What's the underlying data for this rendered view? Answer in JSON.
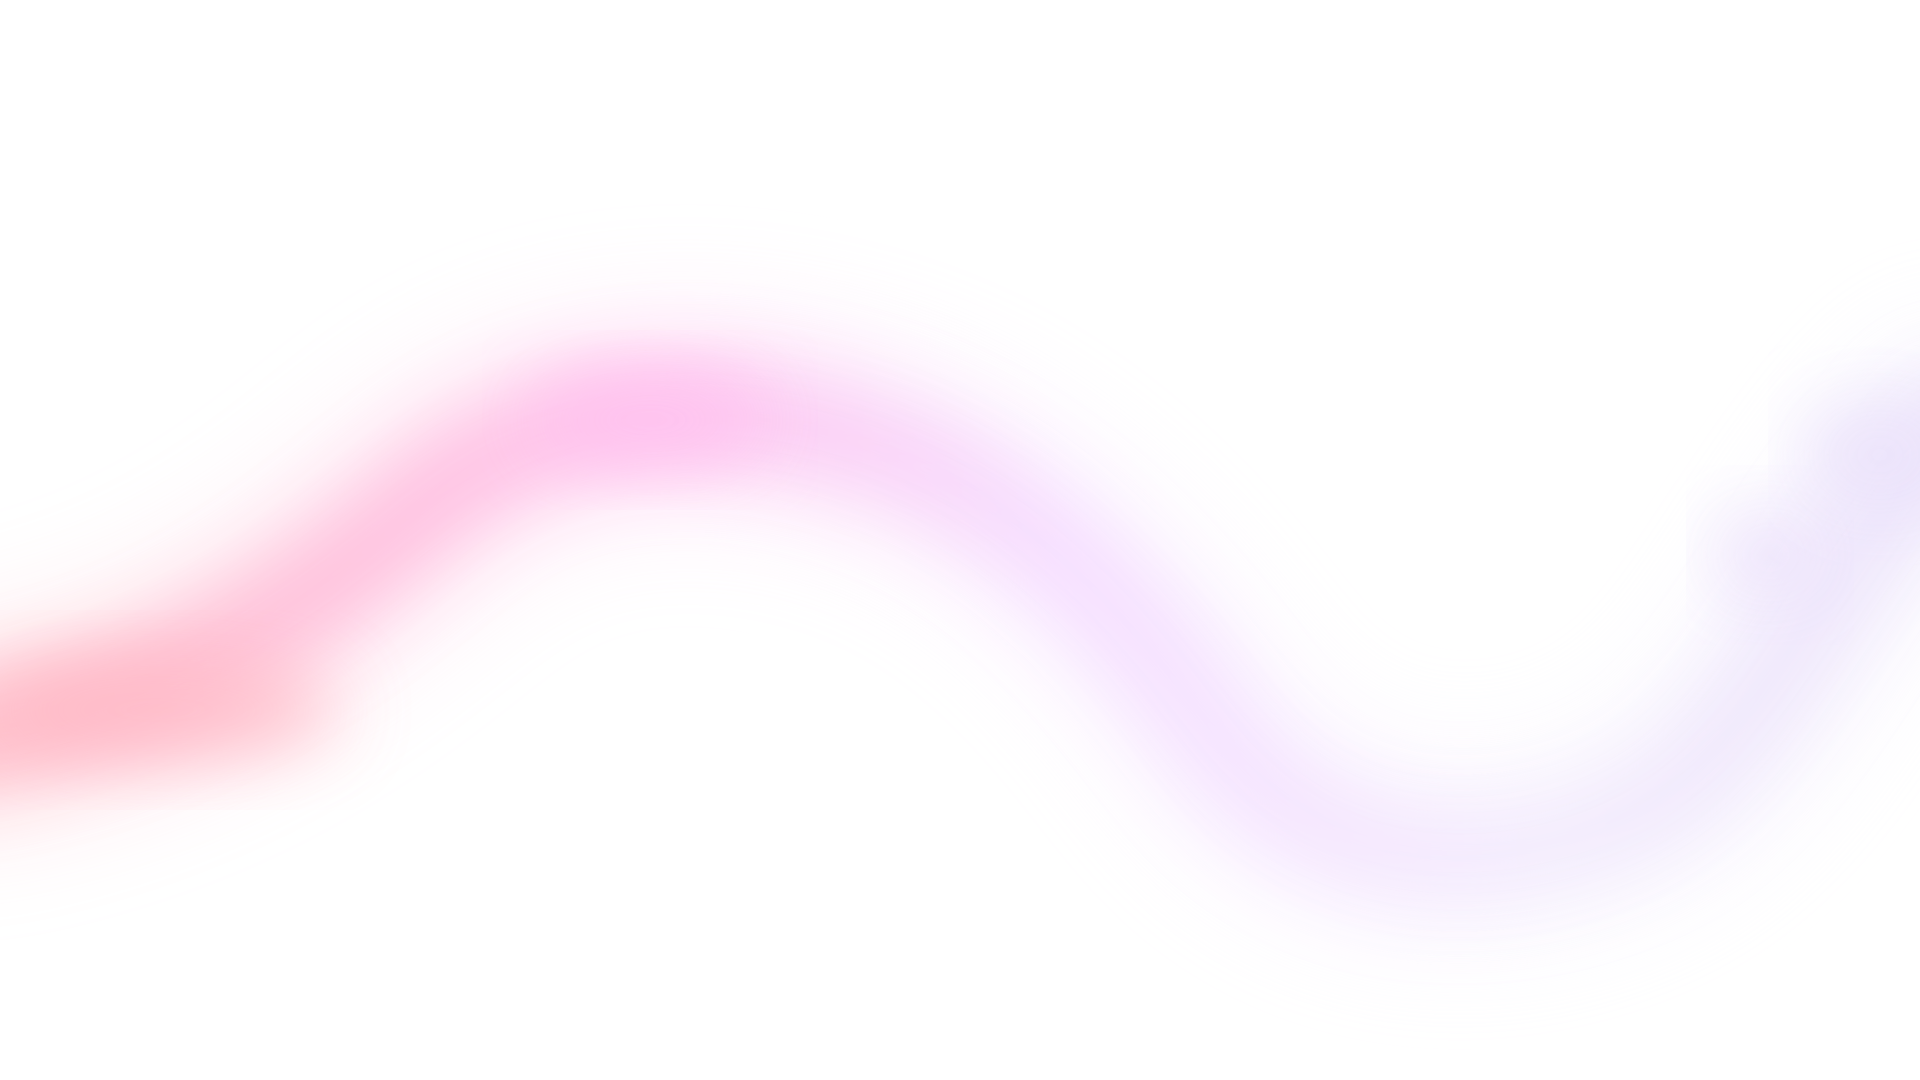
{
  "background": {
    "base_color": "#ffffff",
    "wave_gradient": [
      "#ffbac6",
      "#ffc0ec",
      "#f5dcff",
      "#f3ebfd",
      "#ece4fb"
    ]
  }
}
